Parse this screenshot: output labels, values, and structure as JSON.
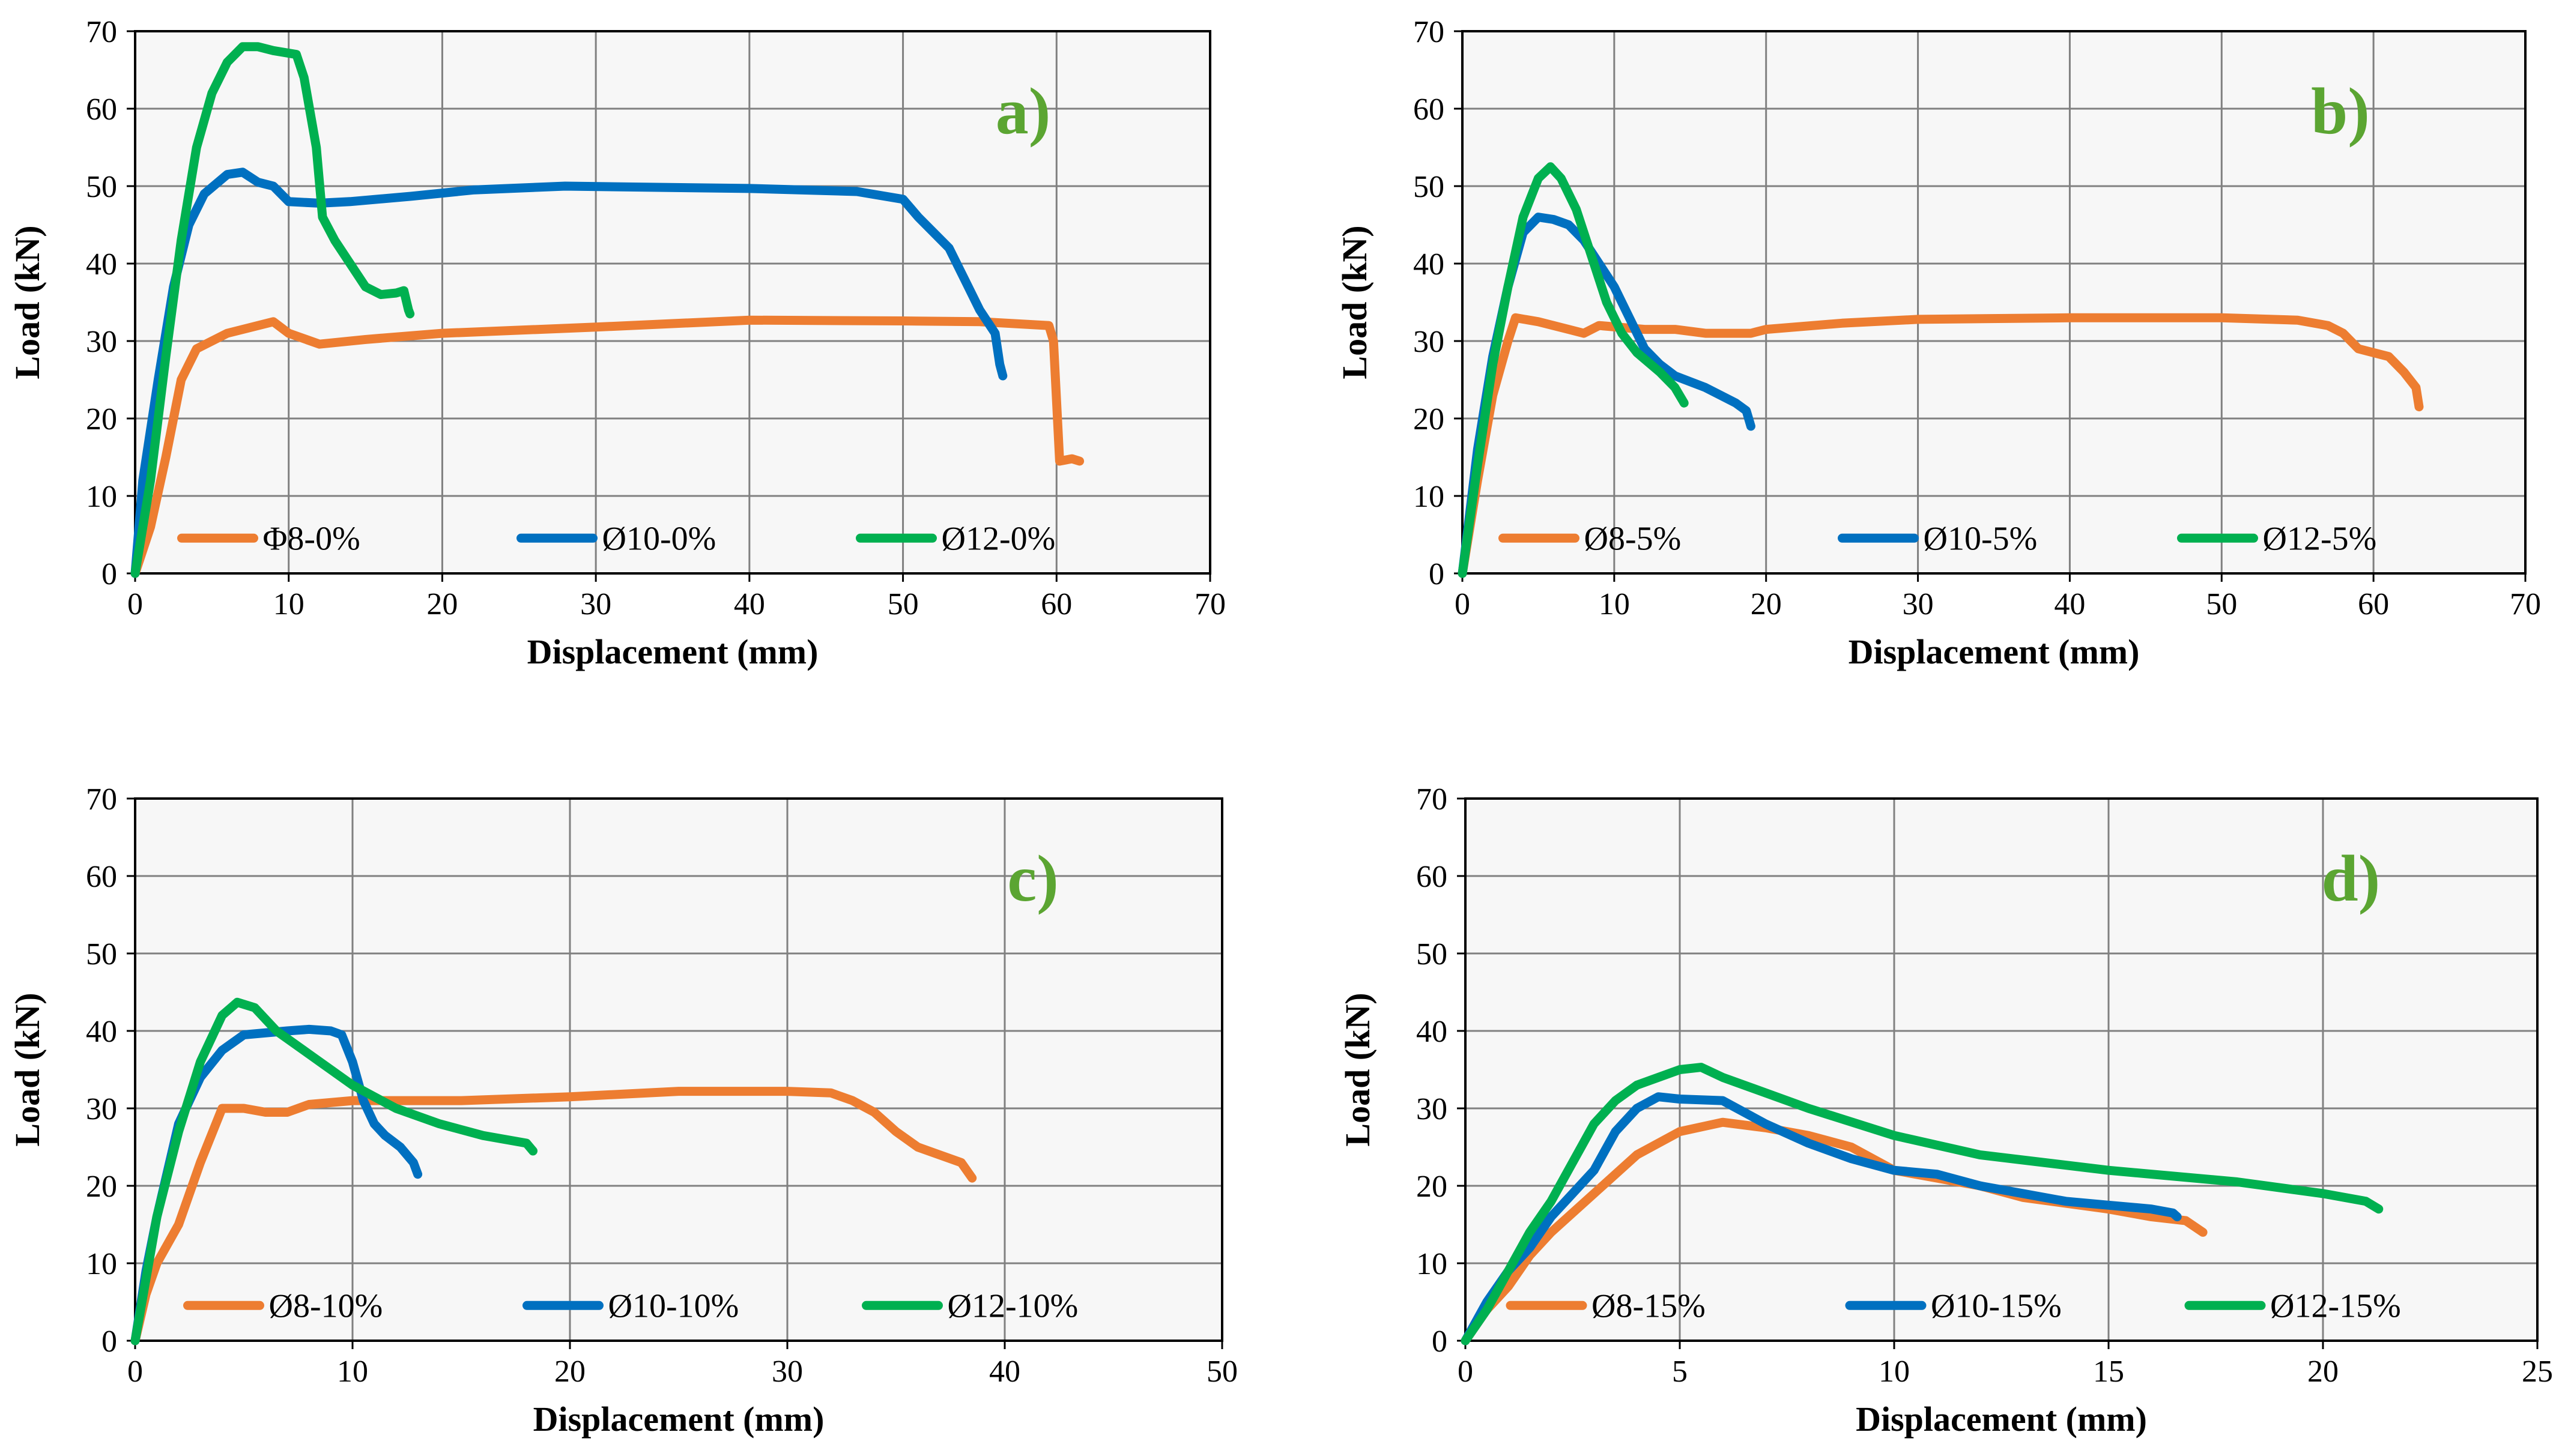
{
  "colors": {
    "orange": "#ED7D31",
    "blue": "#0070C0",
    "green": "#00B050",
    "label": "#5BA532",
    "plot_bg": "#F7F7F7",
    "grid": "#808080"
  },
  "chart_data": [
    {
      "type": "line",
      "panel_label": "a)",
      "xlabel": "Displacement (mm)",
      "ylabel": "Load (kN)",
      "xlim": [
        0,
        70
      ],
      "ylim": [
        0,
        70
      ],
      "xticks": [
        "0",
        "10",
        "20",
        "30",
        "40",
        "50",
        "60",
        "70"
      ],
      "yticks": [
        "0",
        "10",
        "20",
        "30",
        "40",
        "50",
        "60",
        "70"
      ],
      "legend_position": "bottom-center",
      "series": [
        {
          "name": "Φ8-0%",
          "color": "orange",
          "points": [
            [
              0,
              0
            ],
            [
              1,
              6
            ],
            [
              2,
              15
            ],
            [
              3,
              25
            ],
            [
              4,
              29
            ],
            [
              6,
              31
            ],
            [
              9,
              32.5
            ],
            [
              10,
              31
            ],
            [
              12,
              29.6
            ],
            [
              15,
              30.2
            ],
            [
              20,
              31
            ],
            [
              30,
              31.8
            ],
            [
              40,
              32.7
            ],
            [
              50,
              32.6
            ],
            [
              55,
              32.5
            ],
            [
              59.5,
              32
            ],
            [
              59.8,
              30
            ],
            [
              60.2,
              14.5
            ],
            [
              61,
              14.8
            ],
            [
              61.5,
              14.5
            ]
          ]
        },
        {
          "name": "Ø10-0%",
          "color": "blue",
          "points": [
            [
              0,
              0
            ],
            [
              0.5,
              12
            ],
            [
              1.5,
              25
            ],
            [
              2.5,
              37
            ],
            [
              3.5,
              45
            ],
            [
              4.5,
              49
            ],
            [
              6,
              51.5
            ],
            [
              7,
              51.8
            ],
            [
              8,
              50.5
            ],
            [
              9,
              50
            ],
            [
              10,
              48
            ],
            [
              12,
              47.8
            ],
            [
              14,
              48
            ],
            [
              18,
              48.7
            ],
            [
              22,
              49.5
            ],
            [
              28,
              50
            ],
            [
              40,
              49.7
            ],
            [
              47,
              49.3
            ],
            [
              50,
              48.3
            ],
            [
              51,
              46
            ],
            [
              53,
              42
            ],
            [
              54,
              38
            ],
            [
              55,
              34
            ],
            [
              56,
              31
            ],
            [
              56.3,
              27
            ],
            [
              56.5,
              25.5
            ]
          ]
        },
        {
          "name": "Ø12-0%",
          "color": "green",
          "points": [
            [
              0,
              0
            ],
            [
              1,
              12
            ],
            [
              2,
              28
            ],
            [
              3,
              43
            ],
            [
              4,
              55
            ],
            [
              5,
              62
            ],
            [
              6,
              66
            ],
            [
              7,
              68
            ],
            [
              8,
              68
            ],
            [
              9,
              67.5
            ],
            [
              10.5,
              67
            ],
            [
              11,
              64
            ],
            [
              11.8,
              55
            ],
            [
              12.2,
              46
            ],
            [
              13,
              43
            ],
            [
              14,
              40
            ],
            [
              15,
              37
            ],
            [
              16,
              36
            ],
            [
              17,
              36.2
            ],
            [
              17.5,
              36.5
            ],
            [
              17.8,
              34
            ],
            [
              17.9,
              33.5
            ]
          ]
        }
      ]
    },
    {
      "type": "line",
      "panel_label": "b)",
      "xlabel": "Displacement (mm)",
      "ylabel": "Load (kN)",
      "xlim": [
        0,
        70
      ],
      "ylim": [
        0,
        70
      ],
      "xticks": [
        "0",
        "10",
        "20",
        "30",
        "40",
        "50",
        "60",
        "70"
      ],
      "yticks": [
        "0",
        "10",
        "20",
        "30",
        "40",
        "50",
        "60",
        "70"
      ],
      "legend_position": "bottom-center",
      "series": [
        {
          "name": "Ø8-5%",
          "color": "orange",
          "points": [
            [
              0,
              0
            ],
            [
              1,
              12
            ],
            [
              2,
              23
            ],
            [
              3,
              30
            ],
            [
              3.5,
              33
            ],
            [
              5,
              32.5
            ],
            [
              7,
              31.5
            ],
            [
              8,
              31
            ],
            [
              9,
              32
            ],
            [
              12,
              31.5
            ],
            [
              14,
              31.5
            ],
            [
              16,
              31
            ],
            [
              19,
              31
            ],
            [
              20,
              31.5
            ],
            [
              25,
              32.3
            ],
            [
              30,
              32.8
            ],
            [
              40,
              33
            ],
            [
              50,
              33
            ],
            [
              55,
              32.7
            ],
            [
              57,
              32
            ],
            [
              58,
              31
            ],
            [
              59,
              29
            ],
            [
              61,
              28
            ],
            [
              62,
              26
            ],
            [
              62.8,
              24
            ],
            [
              63,
              21.5
            ]
          ]
        },
        {
          "name": "Ø10-5%",
          "color": "blue",
          "points": [
            [
              0,
              0
            ],
            [
              1,
              16
            ],
            [
              2,
              28
            ],
            [
              3,
              37
            ],
            [
              4,
              44
            ],
            [
              5,
              46
            ],
            [
              6,
              45.7
            ],
            [
              7,
              45
            ],
            [
              8,
              43
            ],
            [
              9,
              40
            ],
            [
              10,
              37
            ],
            [
              11,
              33
            ],
            [
              12,
              29
            ],
            [
              13,
              27
            ],
            [
              14,
              25.5
            ],
            [
              16,
              24
            ],
            [
              17,
              23
            ],
            [
              18,
              22
            ],
            [
              18.7,
              21
            ],
            [
              19,
              19
            ]
          ]
        },
        {
          "name": "Ø12-5%",
          "color": "green",
          "points": [
            [
              0,
              0
            ],
            [
              1,
              14
            ],
            [
              2,
              27
            ],
            [
              3,
              37
            ],
            [
              4,
              46
            ],
            [
              5,
              51
            ],
            [
              5.8,
              52.5
            ],
            [
              6.5,
              51
            ],
            [
              7.5,
              47
            ],
            [
              8.5,
              41
            ],
            [
              9.5,
              35
            ],
            [
              10.5,
              31
            ],
            [
              11.5,
              28.5
            ],
            [
              13,
              26
            ],
            [
              14,
              24
            ],
            [
              14.6,
              22
            ]
          ]
        }
      ]
    },
    {
      "type": "line",
      "panel_label": "c)",
      "xlabel": "Displacement (mm)",
      "ylabel": "Load (kN)",
      "xlim": [
        0,
        50
      ],
      "ylim": [
        0,
        70
      ],
      "xticks": [
        "0",
        "10",
        "20",
        "30",
        "40",
        "50"
      ],
      "yticks": [
        "0",
        "10",
        "20",
        "30",
        "40",
        "50",
        "60",
        "70"
      ],
      "legend_position": "bottom-center",
      "series": [
        {
          "name": "Ø8-10%",
          "color": "orange",
          "points": [
            [
              0,
              0
            ],
            [
              0.5,
              6
            ],
            [
              1,
              10
            ],
            [
              2,
              15
            ],
            [
              3,
              23
            ],
            [
              4,
              30
            ],
            [
              5,
              30
            ],
            [
              6,
              29.5
            ],
            [
              7,
              29.5
            ],
            [
              8,
              30.5
            ],
            [
              10,
              31
            ],
            [
              15,
              31
            ],
            [
              20,
              31.5
            ],
            [
              25,
              32.2
            ],
            [
              30,
              32.2
            ],
            [
              32,
              32
            ],
            [
              33,
              31
            ],
            [
              34,
              29.5
            ],
            [
              35,
              27
            ],
            [
              36,
              25
            ],
            [
              37,
              24
            ],
            [
              38,
              23
            ],
            [
              38.5,
              21
            ]
          ]
        },
        {
          "name": "Ø10-10%",
          "color": "blue",
          "points": [
            [
              0,
              0
            ],
            [
              0.5,
              9
            ],
            [
              1,
              16
            ],
            [
              2,
              28
            ],
            [
              3,
              34
            ],
            [
              4,
              37.5
            ],
            [
              5,
              39.5
            ],
            [
              7,
              40
            ],
            [
              8,
              40.2
            ],
            [
              9,
              40
            ],
            [
              9.5,
              39.5
            ],
            [
              10,
              36
            ],
            [
              10.5,
              31
            ],
            [
              11,
              28
            ],
            [
              11.5,
              26.5
            ],
            [
              12.2,
              25
            ],
            [
              12.8,
              23
            ],
            [
              13,
              21.5
            ]
          ]
        },
        {
          "name": "Ø12-10%",
          "color": "green",
          "points": [
            [
              0,
              0
            ],
            [
              0.5,
              8
            ],
            [
              1,
              16
            ],
            [
              2,
              27
            ],
            [
              3,
              36
            ],
            [
              4,
              42
            ],
            [
              4.7,
              43.7
            ],
            [
              5.5,
              43
            ],
            [
              6.5,
              40
            ],
            [
              8,
              37
            ],
            [
              10,
              33
            ],
            [
              12,
              30
            ],
            [
              14,
              28
            ],
            [
              16,
              26.5
            ],
            [
              17,
              26
            ],
            [
              18,
              25.5
            ],
            [
              18.3,
              24.5
            ]
          ]
        }
      ]
    },
    {
      "type": "line",
      "panel_label": "d)",
      "xlabel": "Displacement (mm)",
      "ylabel": "Load (kN)",
      "xlim": [
        0,
        25
      ],
      "ylim": [
        0,
        70
      ],
      "xticks": [
        "0",
        "5",
        "10",
        "15",
        "20",
        "25"
      ],
      "yticks": [
        "0",
        "10",
        "20",
        "30",
        "40",
        "50",
        "60",
        "70"
      ],
      "legend_position": "bottom-center",
      "series": [
        {
          "name": "Ø8-15%",
          "color": "orange",
          "points": [
            [
              0,
              0
            ],
            [
              0.5,
              4
            ],
            [
              1,
              7
            ],
            [
              1.5,
              11
            ],
            [
              2,
              14
            ],
            [
              3,
              19
            ],
            [
              4,
              24
            ],
            [
              5,
              27
            ],
            [
              6,
              28.2
            ],
            [
              7,
              27.5
            ],
            [
              8,
              26.5
            ],
            [
              9,
              25
            ],
            [
              10,
              22
            ],
            [
              12,
              20
            ],
            [
              13,
              18.5
            ],
            [
              15,
              17
            ],
            [
              16,
              16
            ],
            [
              16.8,
              15.5
            ],
            [
              17.2,
              14
            ]
          ]
        },
        {
          "name": "Ø10-15%",
          "color": "blue",
          "points": [
            [
              0,
              0
            ],
            [
              0.5,
              5
            ],
            [
              1,
              9
            ],
            [
              1.5,
              12
            ],
            [
              2,
              16
            ],
            [
              2.5,
              19
            ],
            [
              3,
              22
            ],
            [
              3.5,
              27
            ],
            [
              4,
              30
            ],
            [
              4.5,
              31.5
            ],
            [
              5,
              31.2
            ],
            [
              6,
              31
            ],
            [
              7,
              28
            ],
            [
              8,
              25.5
            ],
            [
              9,
              23.5
            ],
            [
              10,
              22
            ],
            [
              11,
              21.5
            ],
            [
              12,
              20
            ],
            [
              13,
              19
            ],
            [
              14,
              18
            ],
            [
              15,
              17.5
            ],
            [
              16,
              17
            ],
            [
              16.5,
              16.5
            ],
            [
              16.6,
              16
            ]
          ]
        },
        {
          "name": "Ø12-15%",
          "color": "green",
          "points": [
            [
              0,
              0
            ],
            [
              0.5,
              4
            ],
            [
              1,
              9
            ],
            [
              1.5,
              14
            ],
            [
              2,
              18
            ],
            [
              2.5,
              23
            ],
            [
              3,
              28
            ],
            [
              3.5,
              31
            ],
            [
              4,
              33
            ],
            [
              5,
              35
            ],
            [
              5.5,
              35.3
            ],
            [
              6,
              34
            ],
            [
              7,
              32
            ],
            [
              8,
              30
            ],
            [
              10,
              26.5
            ],
            [
              12,
              24
            ],
            [
              15,
              22
            ],
            [
              18,
              20.5
            ],
            [
              20,
              19
            ],
            [
              21,
              18
            ],
            [
              21.3,
              17
            ]
          ]
        }
      ]
    }
  ]
}
